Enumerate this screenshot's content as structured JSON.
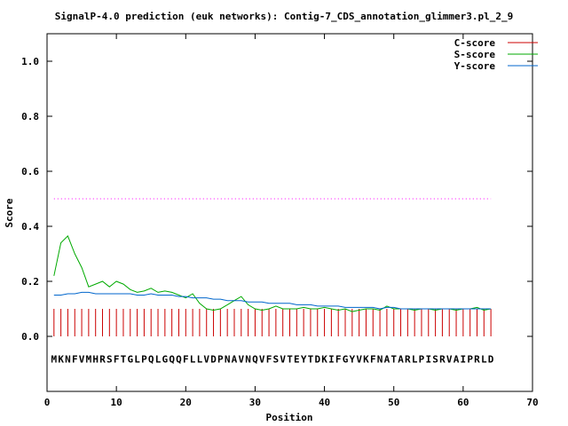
{
  "chart_data": {
    "type": "line",
    "title": "SignalP-4.0 prediction (euk networks): Contig-7_CDS_annotation_glimmer3.pl_2_9",
    "xlabel": "Position",
    "ylabel": "Score",
    "xlim": [
      0,
      70
    ],
    "ylim": [
      -0.2,
      1.1
    ],
    "xticks": [
      0,
      10,
      20,
      30,
      40,
      50,
      60,
      70
    ],
    "xtick_labels": [
      "0",
      "10",
      "20",
      "30",
      "40",
      "50",
      "60",
      "70"
    ],
    "yticks": [
      0.0,
      0.2,
      0.4,
      0.6,
      0.8,
      1.0
    ],
    "ytick_labels": [
      "0.0",
      "0.2",
      "0.4",
      "0.6",
      "0.8",
      "1.0"
    ],
    "grid": false,
    "legend_position": "top-right",
    "threshold": {
      "value": 0.5,
      "x_start": 1,
      "x_end": 64,
      "color": "#ff00ff",
      "style": "dotted"
    },
    "sequence": "MKNFVMHRSFTGLPQLGQQFLLVDPNAVNQVFSVTEYTDKIFGYVKFNATARLPISRVAIPRLD",
    "series": [
      {
        "name": "C-score",
        "color": "#cc0000",
        "style": "impulses",
        "x": [
          1,
          2,
          3,
          4,
          5,
          6,
          7,
          8,
          9,
          10,
          11,
          12,
          13,
          14,
          15,
          16,
          17,
          18,
          19,
          20,
          21,
          22,
          23,
          24,
          25,
          26,
          27,
          28,
          29,
          30,
          31,
          32,
          33,
          34,
          35,
          36,
          37,
          38,
          39,
          40,
          41,
          42,
          43,
          44,
          45,
          46,
          47,
          48,
          49,
          50,
          51,
          52,
          53,
          54,
          55,
          56,
          57,
          58,
          59,
          60,
          61,
          62,
          63,
          64
        ],
        "values": [
          0.1,
          0.1,
          0.1,
          0.1,
          0.1,
          0.1,
          0.1,
          0.1,
          0.1,
          0.1,
          0.1,
          0.1,
          0.1,
          0.1,
          0.1,
          0.1,
          0.1,
          0.1,
          0.1,
          0.1,
          0.1,
          0.1,
          0.1,
          0.1,
          0.1,
          0.1,
          0.1,
          0.1,
          0.1,
          0.1,
          0.1,
          0.1,
          0.1,
          0.1,
          0.1,
          0.1,
          0.1,
          0.1,
          0.1,
          0.1,
          0.1,
          0.1,
          0.1,
          0.1,
          0.1,
          0.1,
          0.1,
          0.1,
          0.1,
          0.1,
          0.1,
          0.1,
          0.1,
          0.1,
          0.1,
          0.1,
          0.1,
          0.1,
          0.1,
          0.1,
          0.1,
          0.1,
          0.1,
          0.1
        ]
      },
      {
        "name": "S-score",
        "color": "#00aa00",
        "style": "line",
        "x": [
          1,
          2,
          3,
          4,
          5,
          6,
          7,
          8,
          9,
          10,
          11,
          12,
          13,
          14,
          15,
          16,
          17,
          18,
          19,
          20,
          21,
          22,
          23,
          24,
          25,
          26,
          27,
          28,
          29,
          30,
          31,
          32,
          33,
          34,
          35,
          36,
          37,
          38,
          39,
          40,
          41,
          42,
          43,
          44,
          45,
          46,
          47,
          48,
          49,
          50,
          51,
          52,
          53,
          54,
          55,
          56,
          57,
          58,
          59,
          60,
          61,
          62,
          63,
          64
        ],
        "values": [
          0.22,
          0.34,
          0.365,
          0.3,
          0.25,
          0.18,
          0.19,
          0.2,
          0.18,
          0.2,
          0.19,
          0.17,
          0.16,
          0.165,
          0.175,
          0.16,
          0.165,
          0.16,
          0.15,
          0.14,
          0.155,
          0.12,
          0.1,
          0.095,
          0.1,
          0.115,
          0.13,
          0.145,
          0.115,
          0.1,
          0.095,
          0.1,
          0.11,
          0.1,
          0.1,
          0.1,
          0.105,
          0.1,
          0.1,
          0.105,
          0.1,
          0.095,
          0.1,
          0.09,
          0.095,
          0.1,
          0.1,
          0.095,
          0.11,
          0.1,
          0.1,
          0.1,
          0.095,
          0.1,
          0.1,
          0.095,
          0.1,
          0.1,
          0.095,
          0.1,
          0.1,
          0.105,
          0.095,
          0.1
        ]
      },
      {
        "name": "Y-score",
        "color": "#0066cc",
        "style": "line",
        "x": [
          1,
          2,
          3,
          4,
          5,
          6,
          7,
          8,
          9,
          10,
          11,
          12,
          13,
          14,
          15,
          16,
          17,
          18,
          19,
          20,
          21,
          22,
          23,
          24,
          25,
          26,
          27,
          28,
          29,
          30,
          31,
          32,
          33,
          34,
          35,
          36,
          37,
          38,
          39,
          40,
          41,
          42,
          43,
          44,
          45,
          46,
          47,
          48,
          49,
          50,
          51,
          52,
          53,
          54,
          55,
          56,
          57,
          58,
          59,
          60,
          61,
          62,
          63,
          64
        ],
        "values": [
          0.15,
          0.15,
          0.155,
          0.155,
          0.16,
          0.16,
          0.155,
          0.155,
          0.155,
          0.155,
          0.155,
          0.155,
          0.15,
          0.15,
          0.155,
          0.15,
          0.15,
          0.15,
          0.145,
          0.145,
          0.14,
          0.14,
          0.14,
          0.135,
          0.135,
          0.13,
          0.13,
          0.13,
          0.125,
          0.125,
          0.125,
          0.12,
          0.12,
          0.12,
          0.12,
          0.115,
          0.115,
          0.115,
          0.11,
          0.11,
          0.11,
          0.11,
          0.105,
          0.105,
          0.105,
          0.105,
          0.105,
          0.1,
          0.105,
          0.105,
          0.1,
          0.1,
          0.1,
          0.1,
          0.1,
          0.1,
          0.1,
          0.1,
          0.1,
          0.1,
          0.1,
          0.1,
          0.1,
          0.1
        ]
      }
    ]
  }
}
